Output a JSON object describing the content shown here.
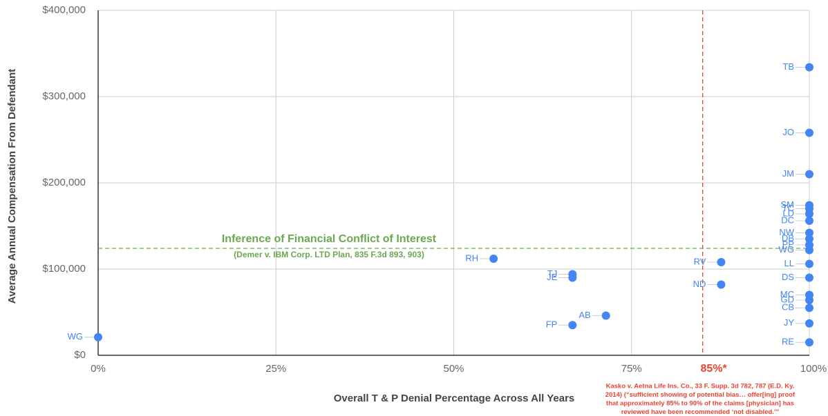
{
  "chart_data": {
    "type": "scatter",
    "x_label": "Overall T & P Denial Percentage Across All Years",
    "y_label": "Average Annual Compensation From Defendant",
    "xlim": [
      0,
      100
    ],
    "ylim": [
      0,
      400000
    ],
    "xticks": [
      {
        "value": 0,
        "label": "0%"
      },
      {
        "value": 25,
        "label": "25%"
      },
      {
        "value": 50,
        "label": "50%"
      },
      {
        "value": 75,
        "label": "75%"
      },
      {
        "value": 100,
        "label": "100%"
      }
    ],
    "yticks": [
      {
        "value": 0,
        "label": "$0"
      },
      {
        "value": 100000,
        "label": "$100,000"
      },
      {
        "value": 200000,
        "label": "$200,000"
      },
      {
        "value": 300000,
        "label": "$300,000"
      },
      {
        "value": 400000,
        "label": "$400,000"
      }
    ],
    "grid": true,
    "color": "#4285f4",
    "points": {
      "labels": [
        "WG",
        "FP",
        "AB",
        "TJ",
        "JE",
        "RH",
        "RV",
        "ND",
        "TB",
        "JO",
        "JM",
        "SM",
        "TC",
        "LD",
        "DC",
        "NW",
        "DB",
        "PP",
        "WG",
        "LL",
        "DS",
        "MC",
        "GD",
        "CB",
        "JY",
        "RE"
      ],
      "x": [
        0,
        66.7,
        71.4,
        66.7,
        66.7,
        55.6,
        87.6,
        87.6,
        100,
        100,
        100,
        100,
        100,
        100,
        100,
        100,
        100,
        100,
        100,
        100,
        100,
        100,
        100,
        100,
        100,
        100
      ],
      "y": [
        21000,
        35000,
        46000,
        94000,
        90000,
        112000,
        108000,
        82000,
        334000,
        258000,
        210000,
        174000,
        170000,
        164000,
        156000,
        142000,
        135000,
        128000,
        122000,
        106000,
        90000,
        70000,
        64000,
        55000,
        37000,
        15000
      ]
    },
    "reference_lines": [
      {
        "axis": "x",
        "value": 85,
        "label": "85%*",
        "color": "#ea4335"
      },
      {
        "axis": "y",
        "value": 124000,
        "color": "#6aa84f",
        "label": "Inference of Financial Conflict of Interest",
        "sublabel": "(Demer v. IBM Corp. LTD Plan, 835 F.3d 893, 903)"
      }
    ],
    "footnote": [
      "Kasko v. Aetna Life Ins. Co., 33 F. Supp. 3d 782, 787 (E.D. Ky.",
      "2014) (“sufficient showing of potential bias… offer[ing] proof",
      "that approximately 85% to 90% of the claims [physician] has",
      "reviewed have been recommended ‘not disabled.’”"
    ]
  }
}
